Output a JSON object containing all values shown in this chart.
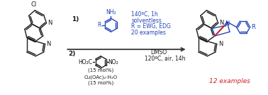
{
  "background_color": "#ffffff",
  "black": "#1a1a1a",
  "blue": "#2244bb",
  "red": "#cc2222",
  "step1_label": "1)",
  "step2_label": "2)",
  "cond1_line1": "140ºC, 1h",
  "cond1_line2": "solventless",
  "cond1_line3": "R = EWG, EDG",
  "cond1_line4": "20 examples",
  "cond2_line1": "DMSO",
  "cond2_line2": "120ºC, air, 14h",
  "product_label": "12 examples",
  "nh2_label": "NH₂",
  "cl_label": "Cl",
  "r_label": "R",
  "ho2c_label": "HO₂C",
  "no2_label": "NO₂",
  "mol15_label": "(15 mol%)",
  "cu_label": "Cu(OAc)₂·H₂O",
  "cu15_label": "(15 mol%)",
  "dmso_label": "DMSO",
  "temp2_label": "120ºC, air, 14h"
}
